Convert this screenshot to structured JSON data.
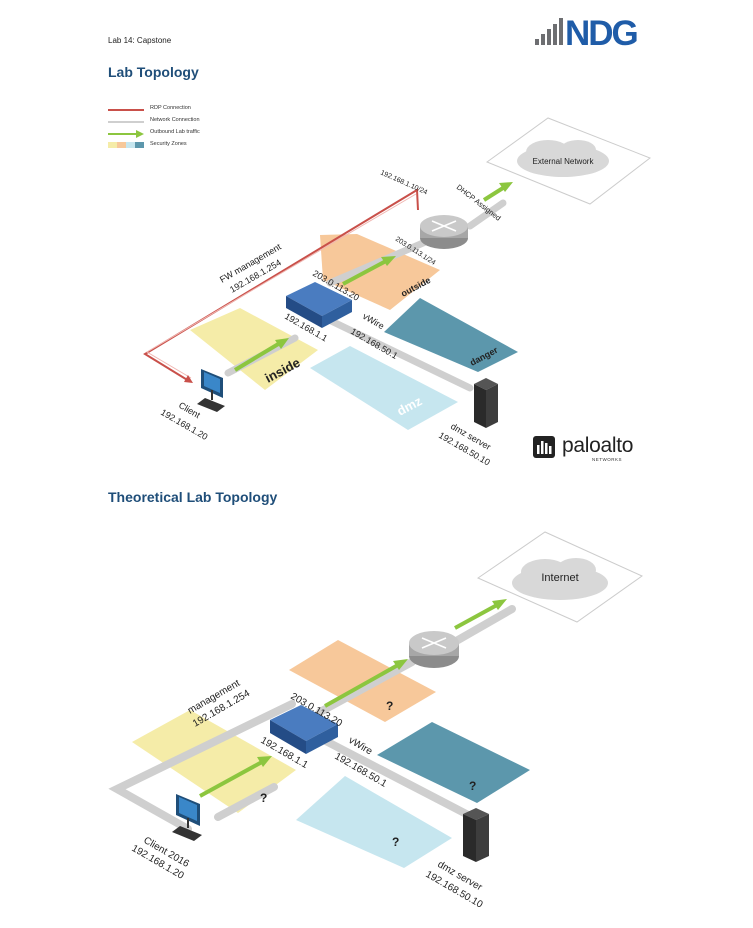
{
  "header": {
    "lab_title": "Lab 14:  Capstone",
    "logo_text": "NDG"
  },
  "sections": {
    "topology_title": "Lab Topology",
    "theoretical_title": "Theoretical Lab Topology"
  },
  "legend": [
    {
      "label": "RDP Connection",
      "color": "#c9504a"
    },
    {
      "label": "Network Connection",
      "color": "#cfcfcf"
    },
    {
      "label": "Outbound Lab traffic",
      "color": "#8cc63f"
    },
    {
      "label": "Security Zones",
      "color": "#f5e6a0"
    }
  ],
  "diagram1": {
    "cloud_label": "External Network",
    "ip_router_left": "192.168.1.10/24",
    "dhcp_label": "DHCP Assigned",
    "ip_router_outside": "203.0.113.1/24",
    "fw_mgmt_line1": "FW management",
    "fw_mgmt_line2": "192.168.1.254",
    "fw_outside_ip": "203.0.113.20",
    "fw_inside_ip": "192.168.1.1",
    "vwire": "vWire",
    "dmz_gw_ip": "192.168.50.1",
    "zone_outside": "outside",
    "zone_danger": "danger",
    "zone_inside": "inside",
    "zone_dmz": "dmz",
    "client_name": "Client",
    "client_ip": "192.168.1.20",
    "server_name": "dmz server",
    "server_ip": "192.168.50.10",
    "paloalto": "paloalto",
    "paloalto_sub": "NETWORKS"
  },
  "diagram2": {
    "cloud_label": "Internet",
    "mgmt_line1": "management",
    "mgmt_line2": "192.168.1.254",
    "fw_outside_ip": "203.0.113.20",
    "fw_inside_ip": "192.168.1.1",
    "vwire": "vWire",
    "dmz_gw_ip": "192.168.50.1",
    "zone_unknown": "?",
    "client_name": "Client 2016",
    "client_ip": "192.168.1.20",
    "server_name": "dmz server",
    "server_ip": "192.168.50.10"
  },
  "colors": {
    "title_blue": "#1f4e79",
    "zone_yellow": "#f5eca8",
    "zone_orange": "#f7c89a",
    "zone_teal": "#5c97ac",
    "zone_lightblue": "#c6e6ef",
    "firewall_blue": "#2f5f9e",
    "green_arrow": "#8cc63f",
    "rdp_red": "#c9504a"
  }
}
